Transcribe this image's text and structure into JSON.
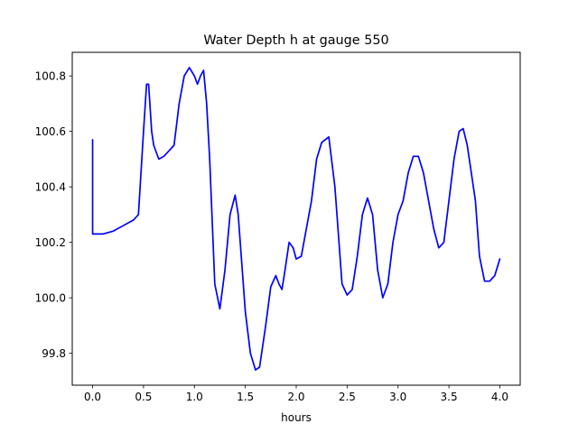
{
  "chart_data": {
    "type": "line",
    "title": "Water Depth h at gauge 550",
    "xlabel": "hours",
    "ylabel": "",
    "xlim": [
      -0.2,
      4.2
    ],
    "ylim": [
      99.685,
      100.885
    ],
    "x_ticks": [
      0.0,
      0.5,
      1.0,
      1.5,
      2.0,
      2.5,
      3.0,
      3.5,
      4.0
    ],
    "x_tick_labels": [
      "0.0",
      "0.5",
      "1.0",
      "1.5",
      "2.0",
      "2.5",
      "3.0",
      "3.5",
      "4.0"
    ],
    "y_ticks": [
      99.8,
      100.0,
      100.2,
      100.4,
      100.6,
      100.8
    ],
    "y_tick_labels": [
      "99.8",
      "100.0",
      "100.2",
      "100.4",
      "100.6",
      "100.8"
    ],
    "grid": false,
    "legend": "none",
    "series": [
      {
        "color": "#0000ff",
        "x": [
          0.0,
          0.0,
          0.1,
          0.2,
          0.3,
          0.4,
          0.45,
          0.5,
          0.53,
          0.55,
          0.58,
          0.6,
          0.65,
          0.7,
          0.75,
          0.8,
          0.85,
          0.9,
          0.95,
          1.0,
          1.03,
          1.06,
          1.09,
          1.12,
          1.15,
          1.2,
          1.25,
          1.3,
          1.35,
          1.4,
          1.43,
          1.46,
          1.5,
          1.55,
          1.6,
          1.64,
          1.7,
          1.75,
          1.8,
          1.83,
          1.86,
          1.89,
          1.93,
          1.97,
          2.0,
          2.05,
          2.1,
          2.15,
          2.2,
          2.25,
          2.32,
          2.38,
          2.45,
          2.5,
          2.55,
          2.6,
          2.65,
          2.7,
          2.75,
          2.8,
          2.85,
          2.9,
          2.95,
          3.0,
          3.05,
          3.1,
          3.15,
          3.2,
          3.25,
          3.3,
          3.35,
          3.4,
          3.45,
          3.5,
          3.55,
          3.6,
          3.64,
          3.68,
          3.72,
          3.76,
          3.8,
          3.85,
          3.9,
          3.95,
          4.0
        ],
        "y": [
          100.57,
          100.23,
          100.23,
          100.24,
          100.26,
          100.28,
          100.3,
          100.6,
          100.77,
          100.77,
          100.6,
          100.55,
          100.5,
          100.51,
          100.53,
          100.55,
          100.7,
          100.8,
          100.83,
          100.8,
          100.77,
          100.8,
          100.82,
          100.7,
          100.5,
          100.05,
          99.96,
          100.1,
          100.3,
          100.37,
          100.3,
          100.15,
          99.95,
          99.8,
          99.74,
          99.75,
          99.9,
          100.04,
          100.08,
          100.05,
          100.03,
          100.1,
          100.2,
          100.18,
          100.14,
          100.15,
          100.25,
          100.35,
          100.5,
          100.56,
          100.58,
          100.4,
          100.05,
          100.01,
          100.03,
          100.15,
          100.3,
          100.36,
          100.3,
          100.1,
          100.0,
          100.05,
          100.2,
          100.3,
          100.35,
          100.45,
          100.51,
          100.51,
          100.45,
          100.35,
          100.25,
          100.18,
          100.2,
          100.35,
          100.5,
          100.6,
          100.61,
          100.55,
          100.45,
          100.35,
          100.15,
          100.06,
          100.06,
          100.08,
          100.14
        ]
      }
    ]
  }
}
